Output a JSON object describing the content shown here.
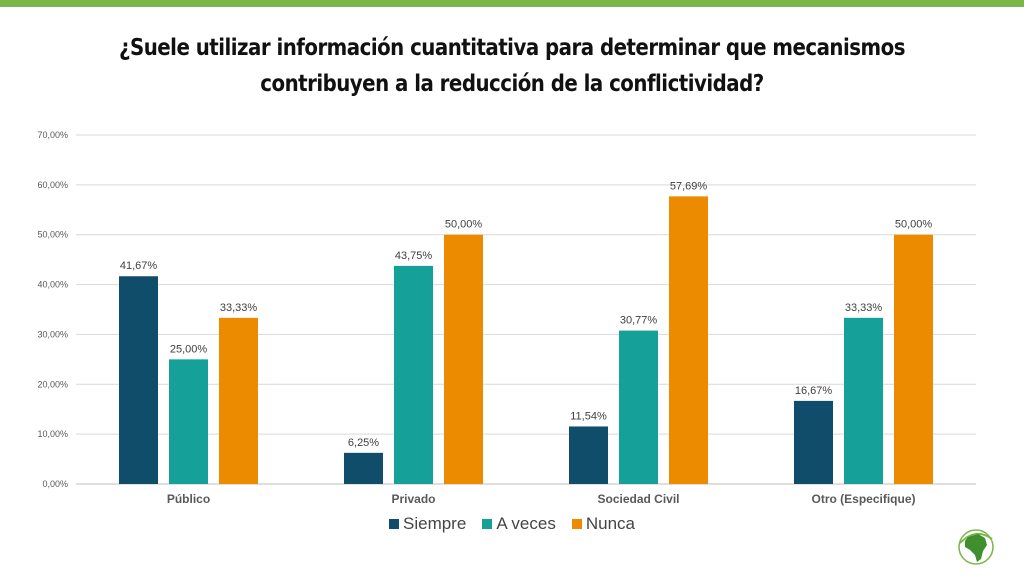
{
  "title": "¿Suele utilizar información cuantitativa para determinar que mecanismos contribuyen a la reducción de la conflictividad?",
  "colors": {
    "top_bar": "#7ab648"
  },
  "chart_data": {
    "type": "bar",
    "categories": [
      "Público",
      "Privado",
      "Sociedad Civil",
      "Otro (Especifique)"
    ],
    "series": [
      {
        "name": "Siempre",
        "color": "#0f4d6b",
        "values": [
          41.67,
          6.25,
          11.54,
          16.67
        ],
        "labels": [
          "41,67%",
          "6,25%",
          "11,54%",
          "16,67%"
        ]
      },
      {
        "name": "A veces",
        "color": "#16a09a",
        "values": [
          25.0,
          43.75,
          30.77,
          33.33
        ],
        "labels": [
          "25,00%",
          "43,75%",
          "30,77%",
          "33,33%"
        ]
      },
      {
        "name": "Nunca",
        "color": "#ec8a00",
        "values": [
          33.33,
          50.0,
          57.69,
          50.0
        ],
        "labels": [
          "33,33%",
          "50,00%",
          "57,69%",
          "50,00%"
        ]
      }
    ],
    "ylim": [
      0,
      70
    ],
    "yticks": [
      "0,00%",
      "10,00%",
      "20,00%",
      "30,00%",
      "40,00%",
      "50,00%",
      "60,00%",
      "70,00%"
    ],
    "grid": true,
    "legend_position": "bottom"
  },
  "logo": {
    "icon": "africa-globe-icon"
  }
}
